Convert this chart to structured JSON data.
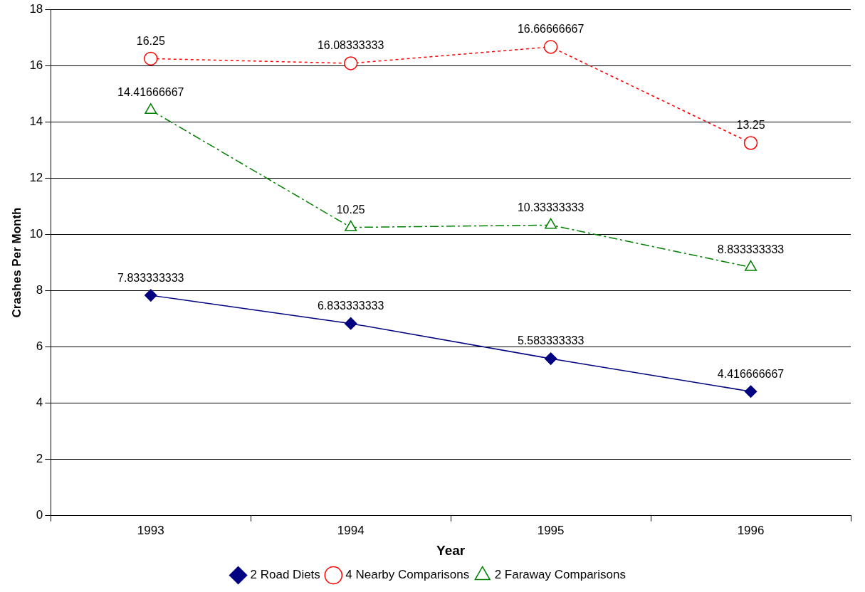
{
  "chart_data": {
    "type": "line",
    "xlabel": "Year",
    "ylabel": "Crashes Per Month",
    "categories": [
      "1993",
      "1994",
      "1995",
      "1996"
    ],
    "series": [
      {
        "name": "2 Road Diets",
        "color": "#000080",
        "marker": "diamond",
        "line_style": "solid",
        "values": [
          7.833333333,
          6.833333333,
          5.583333333,
          4.416666667
        ]
      },
      {
        "name": "4 Nearby Comparisons",
        "color": "#ff0000",
        "marker": "circle",
        "line_style": "dotted",
        "values": [
          16.25,
          16.08333333,
          16.66666667,
          13.25
        ]
      },
      {
        "name": "2 Faraway Comparisons",
        "color": "#008000",
        "marker": "triangle",
        "line_style": "dashed",
        "values": [
          14.41666667,
          10.25,
          10.33333333,
          8.833333333
        ]
      }
    ],
    "ylim": [
      0,
      18
    ],
    "yticks": [
      0,
      2,
      4,
      6,
      8,
      10,
      12,
      14,
      16,
      18
    ],
    "grid": "y",
    "legend": "bottom",
    "data_labels": true
  }
}
